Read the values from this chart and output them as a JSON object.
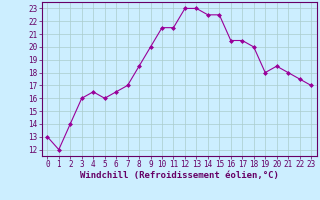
{
  "x": [
    0,
    1,
    2,
    3,
    4,
    5,
    6,
    7,
    8,
    9,
    10,
    11,
    12,
    13,
    14,
    15,
    16,
    17,
    18,
    19,
    20,
    21,
    22,
    23
  ],
  "y": [
    13,
    12,
    14,
    16,
    16.5,
    16,
    16.5,
    17,
    18.5,
    20,
    21.5,
    21.5,
    23,
    23,
    22.5,
    22.5,
    20.5,
    20.5,
    20,
    18,
    18.5,
    18,
    17.5,
    17
  ],
  "line_color": "#990099",
  "marker": "D",
  "marker_size": 2,
  "bg_color": "#cceeff",
  "grid_color": "#aacccc",
  "ylim": [
    11.5,
    23.5
  ],
  "xlim": [
    -0.5,
    23.5
  ],
  "yticks": [
    12,
    13,
    14,
    15,
    16,
    17,
    18,
    19,
    20,
    21,
    22,
    23
  ],
  "xticks": [
    0,
    1,
    2,
    3,
    4,
    5,
    6,
    7,
    8,
    9,
    10,
    11,
    12,
    13,
    14,
    15,
    16,
    17,
    18,
    19,
    20,
    21,
    22,
    23
  ],
  "xlabel": "Windchill (Refroidissement éolien,°C)",
  "xlabel_color": "#660066",
  "tick_color": "#660066",
  "spine_color": "#660066",
  "label_fontsize": 6.5,
  "tick_fontsize": 5.5
}
